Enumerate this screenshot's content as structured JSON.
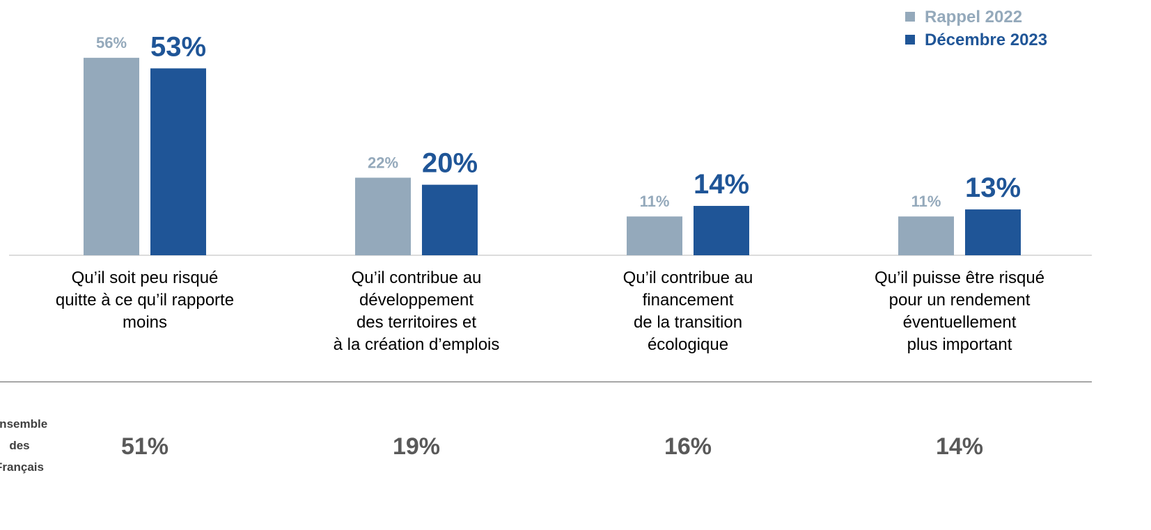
{
  "chart_data": {
    "type": "bar",
    "categories": [
      "Qu’il soit peu risqué\nquitte à ce qu’il rapporte\nmoins",
      "Qu’il contribue au\ndéveloppement\ndes territoires et\nà la création d’emplois",
      "Qu’il contribue au\nfinancement\nde la transition\nécologique",
      "Qu’il puisse être risqué\npour un rendement\néventuellement\nplus important"
    ],
    "series": [
      {
        "name": "Rappel 2022",
        "color": "#94a9bb",
        "values": [
          56,
          22,
          11,
          11
        ],
        "value_labels": [
          "56%",
          "22%",
          "11%",
          "11%"
        ]
      },
      {
        "name": "Décembre 2023",
        "color": "#1f5597",
        "values": [
          53,
          20,
          14,
          13
        ],
        "value_labels": [
          "53%",
          "20%",
          "14%",
          "13%"
        ]
      }
    ],
    "ylim": [
      0,
      72
    ],
    "legend": "top-right",
    "summary": {
      "label": "Ensemble des Français",
      "values": [
        51,
        19,
        16,
        14
      ],
      "value_labels": [
        "51%",
        "19%",
        "16%",
        "14%"
      ]
    }
  }
}
